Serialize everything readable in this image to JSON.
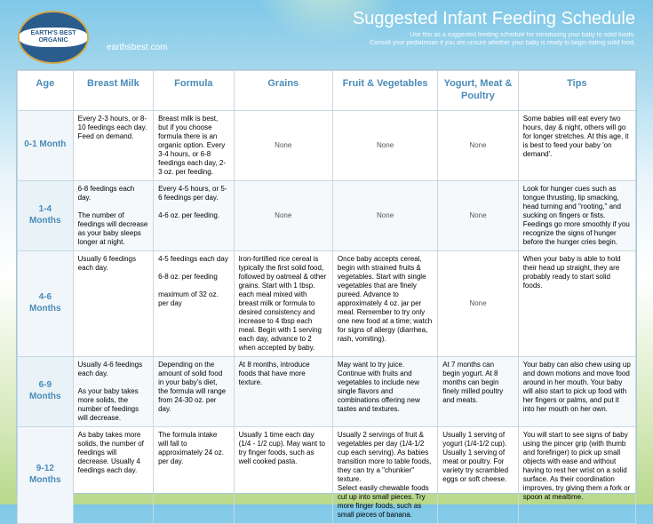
{
  "site": "earthsbest.com",
  "logo": "EARTH'S BEST ORGANIC",
  "title": "Suggested Infant Feeding Schedule",
  "sub1": "Use this as a suggested feeding schedule for introducing your baby to solid foods.",
  "sub2": "Consult your pediatrician if you are unsure whether your baby is ready to begin eating solid food.",
  "cols": [
    "Age",
    "Breast Milk",
    "Formula",
    "Grains",
    "Fruit & Vegetables",
    "Yogurt, Meat & Poultry",
    "Tips"
  ],
  "rows": [
    {
      "age": "0-1 Month",
      "bm": "Every 2-3 hours, or 8-10 feedings each day. Feed on demand.",
      "fm": "Breast milk is best, but if you choose formula there is an organic option. Every 3-4 hours, or 6-8 feedings each day, 2-3 oz. per feeding.",
      "gr": "None",
      "fv": "None",
      "ym": "None",
      "tp": "Some babies will eat every two hours, day & night, others will go for longer stretches. At this age, it is best to feed your baby 'on demand'."
    },
    {
      "age": "1-4 Months",
      "bm": "6-8 feedings each day.\n\nThe number of feedings will decrease as your baby sleeps longer at night.",
      "fm": "Every 4-5 hours, or 5-6 feedings per day.\n\n4-6 oz. per feeding.",
      "gr": "None",
      "fv": "None",
      "ym": "None",
      "tp": "Look for hunger cues such as tongue thrusting, lip smacking, head turning and \"rooting,\" and sucking on fingers or fists. Feedings go more smoothly if you recognize the signs of hunger before the hunger cries begin."
    },
    {
      "age": "4-6 Months",
      "bm": "Usually 6 feedings each day.",
      "fm": "4-5 feedings each day\n\n6-8 oz. per feeding\n\nmaximum of 32 oz. per day",
      "gr": "Iron-fortified rice cereal is typically the first solid food, followed by oatmeal & other grains. Start with 1 tbsp. each meal mixed with breast milk or formula to desired consistency and increase to 4 tbsp each meal. Begin with 1 serving each day, advance to 2 when accepted by baby.",
      "fv": "Once baby accepts cereal, begin with strained fruits & vegetables. Start with single vegetables that are finely pureed. Advance to approximately 4 oz. jar per meal. Remember to try only one new food at a time; watch for signs of allergy (diarrhea, rash, vomiting).",
      "ym": "None",
      "tp": "When your baby is able to hold their head up straight, they are probably ready to start solid foods."
    },
    {
      "age": "6-9 Months",
      "bm": "Usually 4-6 feedings each day.\n\nAs your baby takes more solids, the number of feedings will decrease.",
      "fm": "Depending on the amount of solid food in your baby's diet, the formula will range from 24-30 oz. per day.",
      "gr": "At 8 months, introduce foods that have more texture.",
      "fv": "May want to try juice. Continue with fruits and vegetables to include new single flavors and combinations offering new tastes and textures.",
      "ym": "At 7 months can begin yogurt. At 8 months can begin finely milled poultry and meats.",
      "tp": "Your baby can also chew using up and down motions and move food around in her mouth. Your baby will also start to pick up food with her fingers or palms, and put it into her mouth on her own."
    },
    {
      "age": "9-12 Months",
      "bm": "As baby takes more solids, the number of feedings will decrease. Usually 4 feedings each day.",
      "fm": "The formula intake will fall to approximately 24 oz. per day.",
      "gr": "Usually 1 time each day (1/4 - 1/2 cup). May want to try finger foods, such as well cooked pasta.",
      "fv": "Usually 2 servings of fruit & vegetables per day (1/4-1/2 cup each serving). As babies transition more to table foods, they can try a \"chunkier\" texture.\nSelect easily chewable foods cut up into small pieces. Try more finger foods, such as small pieces of banana.",
      "ym": "Usually 1 serving of yogurt (1/4-1/2 cup). Usually 1 serving of meat or poultry. For variety try scrambled eggs or soft cheese.",
      "tp": "You will start to see signs of baby using the pincer grip (with thumb and forefinger) to pick up small objects with ease and without having to rest her wrist on a solid surface. As their coordination improves, try giving them a fork or spoon at mealtime."
    }
  ]
}
